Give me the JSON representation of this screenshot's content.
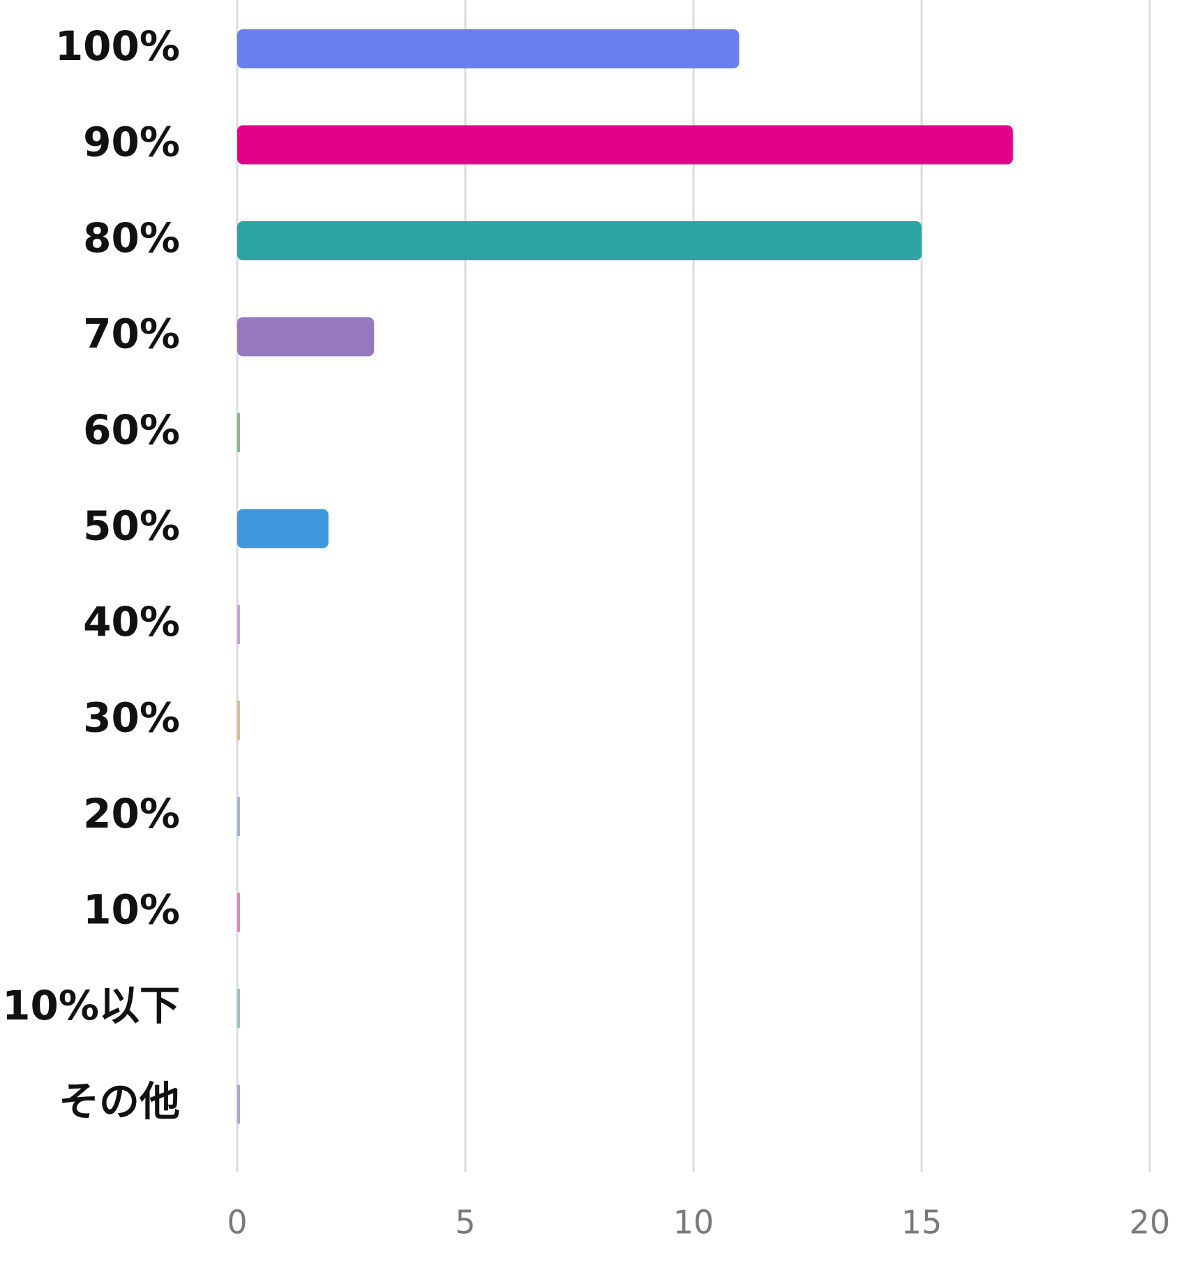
{
  "chart_data": {
    "type": "bar",
    "orientation": "horizontal",
    "categories": [
      "100%",
      "90%",
      "80%",
      "70%",
      "60%",
      "50%",
      "40%",
      "30%",
      "20%",
      "10%",
      "10%以下",
      "その他"
    ],
    "values": [
      11,
      17,
      15,
      3,
      0,
      2,
      0,
      0,
      0,
      0,
      0,
      0
    ],
    "colors": [
      "#6b7ef0",
      "#e2008a",
      "#2ea3a3",
      "#9678c0",
      "#7fbf8e",
      "#3d98dd",
      "#c9a3dd",
      "#d8c08a",
      "#a8b0e6",
      "#ec82b5",
      "#86ccc2",
      "#b2a4d6"
    ],
    "xticks": [
      "0",
      "5",
      "10",
      "15",
      "20"
    ],
    "xlim": [
      0,
      20
    ],
    "grid": true,
    "legend": "none",
    "title": "",
    "xlabel": "",
    "ylabel": ""
  }
}
